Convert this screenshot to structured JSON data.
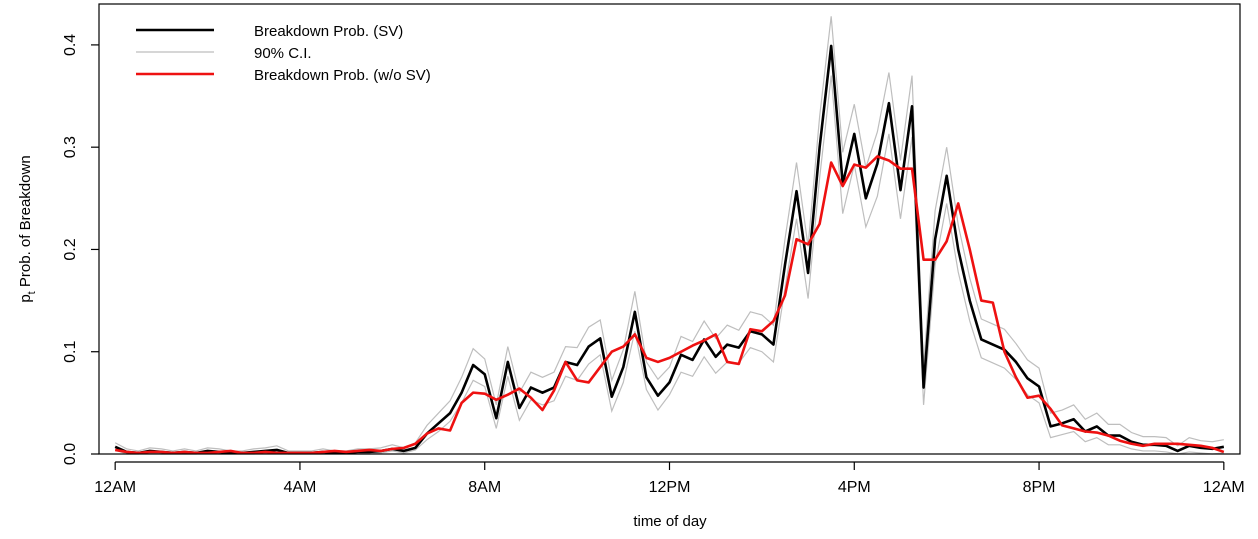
{
  "chart_data": {
    "type": "line",
    "xlabel": "time of day",
    "ylabel_sub": "t",
    "ylabel_prefix": "p",
    "ylabel_rest": " Prob. of Breakdown",
    "ylim": [
      0.0,
      0.44
    ],
    "xlim": [
      -0.35,
      24.35
    ],
    "y_ticks": [
      {
        "value": 0.0,
        "label": "0.0"
      },
      {
        "value": 0.1,
        "label": "0.1"
      },
      {
        "value": 0.2,
        "label": "0.2"
      },
      {
        "value": 0.3,
        "label": "0.3"
      },
      {
        "value": 0.4,
        "label": "0.4"
      }
    ],
    "x_ticks": [
      {
        "value": 0,
        "label": "12AM"
      },
      {
        "value": 4,
        "label": "4AM"
      },
      {
        "value": 8,
        "label": "8AM"
      },
      {
        "value": 12,
        "label": "12PM"
      },
      {
        "value": 16,
        "label": "4PM"
      },
      {
        "value": 20,
        "label": "8PM"
      },
      {
        "value": 24,
        "label": "12AM"
      }
    ],
    "legend_position": "top-left",
    "series": [
      {
        "name": "Breakdown Prob. (SV)",
        "color": "#000000",
        "x": [
          0,
          0.25,
          0.5,
          0.75,
          1,
          1.25,
          1.5,
          1.75,
          2,
          2.25,
          2.5,
          2.75,
          3,
          3.25,
          3.5,
          3.75,
          4,
          4.25,
          4.5,
          4.75,
          5,
          5.25,
          5.5,
          5.75,
          6,
          6.25,
          6.5,
          6.75,
          7,
          7.25,
          7.5,
          7.75,
          8,
          8.25,
          8.5,
          8.75,
          9,
          9.25,
          9.5,
          9.75,
          10,
          10.25,
          10.5,
          10.75,
          11,
          11.25,
          11.5,
          11.75,
          12,
          12.25,
          12.5,
          12.75,
          13,
          13.25,
          13.5,
          13.75,
          14,
          14.25,
          14.5,
          14.75,
          15,
          15.25,
          15.5,
          15.75,
          16,
          16.25,
          16.5,
          16.75,
          17,
          17.25,
          17.5,
          17.75,
          18,
          18.25,
          18.5,
          18.75,
          19,
          19.25,
          19.5,
          19.75,
          20,
          20.25,
          20.5,
          20.75,
          21,
          21.25,
          21.5,
          21.75,
          22,
          22.25,
          22.5,
          22.75,
          23,
          23.25,
          23.5,
          23.75,
          24
        ],
        "values": [
          0.007,
          0.002,
          0.001,
          0.003,
          0.002,
          0.001,
          0.002,
          0.001,
          0.003,
          0.002,
          0.001,
          0.001,
          0.002,
          0.003,
          0.004,
          0.001,
          0.001,
          0.001,
          0.002,
          0.001,
          0.001,
          0.002,
          0.002,
          0.003,
          0.005,
          0.003,
          0.006,
          0.02,
          0.03,
          0.04,
          0.06,
          0.087,
          0.078,
          0.035,
          0.09,
          0.045,
          0.065,
          0.06,
          0.065,
          0.09,
          0.087,
          0.105,
          0.113,
          0.056,
          0.085,
          0.139,
          0.075,
          0.057,
          0.07,
          0.097,
          0.092,
          0.112,
          0.095,
          0.107,
          0.104,
          0.12,
          0.117,
          0.107,
          0.185,
          0.257,
          0.177,
          0.3,
          0.399,
          0.264,
          0.313,
          0.25,
          0.284,
          0.343,
          0.258,
          0.34,
          0.065,
          0.21,
          0.272,
          0.2,
          0.15,
          0.112,
          0.107,
          0.102,
          0.09,
          0.074,
          0.066,
          0.027,
          0.03,
          0.034,
          0.022,
          0.027,
          0.018,
          0.018,
          0.012,
          0.009,
          0.009,
          0.008,
          0.003,
          0.008,
          0.006,
          0.005,
          0.007
        ],
        "ci_lower": [
          0.004,
          0.0,
          0.0,
          0.001,
          0.0,
          0.0,
          0.0,
          0.0,
          0.001,
          0.0,
          0.0,
          0.0,
          0.0,
          0.001,
          0.002,
          0.0,
          0.0,
          0.0,
          0.0,
          0.0,
          0.0,
          0.0,
          0.0,
          0.001,
          0.003,
          0.001,
          0.004,
          0.014,
          0.022,
          0.032,
          0.05,
          0.072,
          0.066,
          0.025,
          0.076,
          0.033,
          0.053,
          0.048,
          0.052,
          0.076,
          0.072,
          0.088,
          0.097,
          0.042,
          0.07,
          0.12,
          0.063,
          0.043,
          0.058,
          0.08,
          0.076,
          0.095,
          0.079,
          0.09,
          0.089,
          0.104,
          0.1,
          0.09,
          0.162,
          0.23,
          0.152,
          0.27,
          0.37,
          0.235,
          0.283,
          0.222,
          0.252,
          0.313,
          0.23,
          0.31,
          0.048,
          0.185,
          0.245,
          0.178,
          0.13,
          0.094,
          0.089,
          0.084,
          0.073,
          0.058,
          0.05,
          0.016,
          0.019,
          0.022,
          0.012,
          0.016,
          0.009,
          0.009,
          0.005,
          0.003,
          0.003,
          0.002,
          0.0,
          0.002,
          0.001,
          0.0,
          0.001
        ],
        "ci_upper": [
          0.011,
          0.005,
          0.003,
          0.006,
          0.005,
          0.003,
          0.005,
          0.003,
          0.006,
          0.005,
          0.003,
          0.003,
          0.005,
          0.006,
          0.008,
          0.003,
          0.003,
          0.003,
          0.005,
          0.003,
          0.003,
          0.005,
          0.005,
          0.006,
          0.009,
          0.006,
          0.011,
          0.028,
          0.04,
          0.052,
          0.075,
          0.103,
          0.093,
          0.048,
          0.105,
          0.06,
          0.08,
          0.075,
          0.08,
          0.105,
          0.104,
          0.124,
          0.131,
          0.072,
          0.102,
          0.159,
          0.09,
          0.073,
          0.085,
          0.115,
          0.11,
          0.13,
          0.113,
          0.126,
          0.121,
          0.139,
          0.136,
          0.126,
          0.21,
          0.285,
          0.203,
          0.33,
          0.428,
          0.295,
          0.342,
          0.28,
          0.315,
          0.373,
          0.287,
          0.37,
          0.085,
          0.238,
          0.3,
          0.224,
          0.172,
          0.132,
          0.127,
          0.122,
          0.108,
          0.092,
          0.084,
          0.04,
          0.043,
          0.048,
          0.034,
          0.04,
          0.029,
          0.029,
          0.021,
          0.017,
          0.017,
          0.016,
          0.008,
          0.016,
          0.013,
          0.012,
          0.014
        ]
      },
      {
        "name": "90% C.I.",
        "color": "#bebebe"
      },
      {
        "name": "Breakdown Prob. (w/o SV)",
        "color": "#ee1111",
        "x": [
          0,
          0.25,
          0.5,
          0.75,
          1,
          1.25,
          1.5,
          1.75,
          2,
          2.25,
          2.5,
          2.75,
          3,
          3.25,
          3.5,
          3.75,
          4,
          4.25,
          4.5,
          4.75,
          5,
          5.25,
          5.5,
          5.75,
          6,
          6.25,
          6.5,
          6.75,
          7,
          7.25,
          7.5,
          7.75,
          8,
          8.25,
          8.5,
          8.75,
          9,
          9.25,
          9.5,
          9.75,
          10,
          10.25,
          10.5,
          10.75,
          11,
          11.25,
          11.5,
          11.75,
          12,
          12.25,
          12.5,
          12.75,
          13,
          13.25,
          13.5,
          13.75,
          14,
          14.25,
          14.5,
          14.75,
          15,
          15.25,
          15.5,
          15.75,
          16,
          16.25,
          16.5,
          16.75,
          17,
          17.25,
          17.5,
          17.75,
          18,
          18.25,
          18.5,
          18.75,
          19,
          19.25,
          19.5,
          19.75,
          20,
          20.25,
          20.5,
          20.75,
          21,
          21.25,
          21.5,
          21.75,
          22,
          22.25,
          22.5,
          22.75,
          23,
          23.25,
          23.5,
          23.75,
          24
        ],
        "values": [
          0.004,
          0.002,
          0.001,
          0.002,
          0.002,
          0.001,
          0.002,
          0.001,
          0.001,
          0.002,
          0.003,
          0.001,
          0.001,
          0.002,
          0.001,
          0.001,
          0.001,
          0.001,
          0.002,
          0.003,
          0.002,
          0.003,
          0.004,
          0.003,
          0.005,
          0.006,
          0.01,
          0.02,
          0.025,
          0.023,
          0.05,
          0.06,
          0.059,
          0.053,
          0.058,
          0.064,
          0.055,
          0.043,
          0.062,
          0.09,
          0.072,
          0.07,
          0.085,
          0.1,
          0.105,
          0.117,
          0.094,
          0.09,
          0.094,
          0.1,
          0.106,
          0.111,
          0.117,
          0.09,
          0.088,
          0.122,
          0.12,
          0.13,
          0.155,
          0.21,
          0.205,
          0.225,
          0.285,
          0.262,
          0.283,
          0.28,
          0.291,
          0.287,
          0.279,
          0.279,
          0.19,
          0.19,
          0.208,
          0.245,
          0.2,
          0.15,
          0.148,
          0.1,
          0.075,
          0.055,
          0.057,
          0.044,
          0.028,
          0.025,
          0.022,
          0.021,
          0.018,
          0.013,
          0.01,
          0.008,
          0.01,
          0.01,
          0.01,
          0.009,
          0.008,
          0.006,
          0.002
        ]
      }
    ]
  }
}
